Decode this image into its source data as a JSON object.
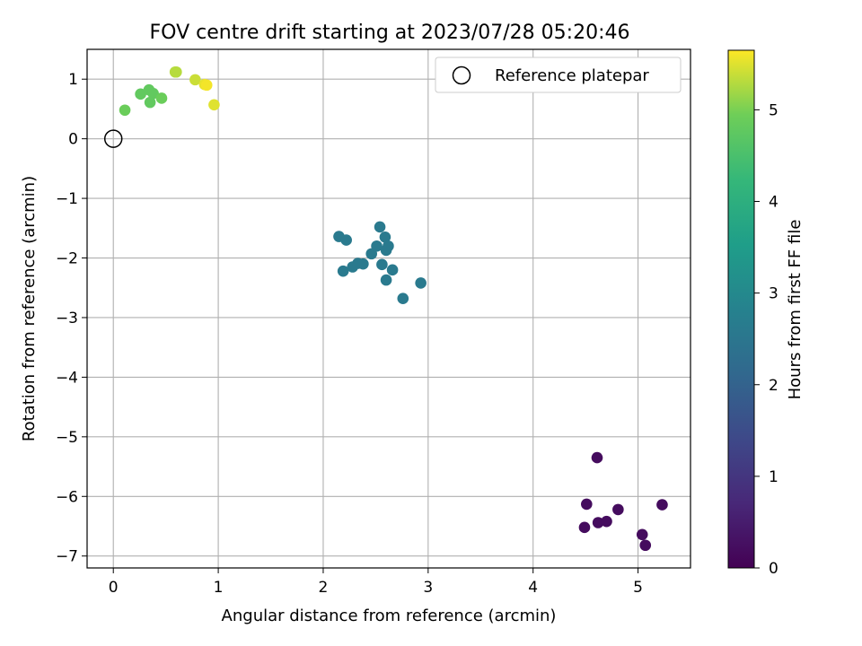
{
  "chart_data": {
    "type": "scatter",
    "title": "FOV centre drift starting at 2023/07/28 05:20:46",
    "xlabel": "Angular distance from reference (arcmin)",
    "ylabel": "Rotation from reference (arcmin)",
    "xlim": [
      -0.25,
      5.5
    ],
    "ylim": [
      -7.2,
      1.5
    ],
    "xticks": [
      0,
      1,
      2,
      3,
      4,
      5
    ],
    "yticks": [
      1,
      0,
      -1,
      -2,
      -3,
      -4,
      -5,
      -6,
      -7
    ],
    "grid": true,
    "legend": {
      "placement": "top-right",
      "entries": [
        "Reference platepar"
      ]
    },
    "colorbar": {
      "label": "Hours from first FF file",
      "range": [
        0,
        5.65
      ],
      "ticks": [
        0,
        1,
        2,
        3,
        4,
        5
      ],
      "colormap": "viridis"
    },
    "reference": {
      "x": 0,
      "y": 0,
      "label": "Reference platepar"
    },
    "points": [
      {
        "x": 4.61,
        "y": -5.35,
        "c": 0.2
      },
      {
        "x": 4.51,
        "y": -6.13,
        "c": 0.2
      },
      {
        "x": 4.49,
        "y": -6.52,
        "c": 0.2
      },
      {
        "x": 4.62,
        "y": -6.44,
        "c": 0.2
      },
      {
        "x": 4.7,
        "y": -6.42,
        "c": 0.2
      },
      {
        "x": 4.81,
        "y": -6.22,
        "c": 0.2
      },
      {
        "x": 5.04,
        "y": -6.64,
        "c": 0.2
      },
      {
        "x": 5.07,
        "y": -6.82,
        "c": 0.2
      },
      {
        "x": 5.23,
        "y": -6.14,
        "c": 0.2
      },
      {
        "x": 2.15,
        "y": -1.64,
        "c": 2.6
      },
      {
        "x": 2.22,
        "y": -1.7,
        "c": 2.6
      },
      {
        "x": 2.19,
        "y": -2.22,
        "c": 2.6
      },
      {
        "x": 2.28,
        "y": -2.15,
        "c": 2.6
      },
      {
        "x": 2.33,
        "y": -2.09,
        "c": 2.6
      },
      {
        "x": 2.38,
        "y": -2.1,
        "c": 2.6
      },
      {
        "x": 2.46,
        "y": -1.93,
        "c": 2.6
      },
      {
        "x": 2.51,
        "y": -1.8,
        "c": 2.6
      },
      {
        "x": 2.54,
        "y": -1.48,
        "c": 2.6
      },
      {
        "x": 2.56,
        "y": -2.11,
        "c": 2.6
      },
      {
        "x": 2.59,
        "y": -1.65,
        "c": 2.6
      },
      {
        "x": 2.6,
        "y": -1.87,
        "c": 2.6
      },
      {
        "x": 2.62,
        "y": -1.8,
        "c": 2.6
      },
      {
        "x": 2.6,
        "y": -2.37,
        "c": 2.6
      },
      {
        "x": 2.66,
        "y": -2.2,
        "c": 2.6
      },
      {
        "x": 2.76,
        "y": -2.68,
        "c": 2.6
      },
      {
        "x": 2.93,
        "y": -2.42,
        "c": 2.6
      },
      {
        "x": 0.11,
        "y": 0.48,
        "c": 4.9
      },
      {
        "x": 0.26,
        "y": 0.75,
        "c": 4.8
      },
      {
        "x": 0.34,
        "y": 0.82,
        "c": 4.8
      },
      {
        "x": 0.38,
        "y": 0.76,
        "c": 4.8
      },
      {
        "x": 0.35,
        "y": 0.61,
        "c": 4.8
      },
      {
        "x": 0.46,
        "y": 0.68,
        "c": 4.9
      },
      {
        "x": 0.59,
        "y": 1.12,
        "c": 5.3
      },
      {
        "x": 0.6,
        "y": 1.12,
        "c": 5.3
      },
      {
        "x": 0.78,
        "y": 0.99,
        "c": 5.4
      },
      {
        "x": 0.87,
        "y": 0.91,
        "c": 5.55
      },
      {
        "x": 0.89,
        "y": 0.9,
        "c": 5.6
      },
      {
        "x": 0.96,
        "y": 0.57,
        "c": 5.5
      }
    ]
  }
}
